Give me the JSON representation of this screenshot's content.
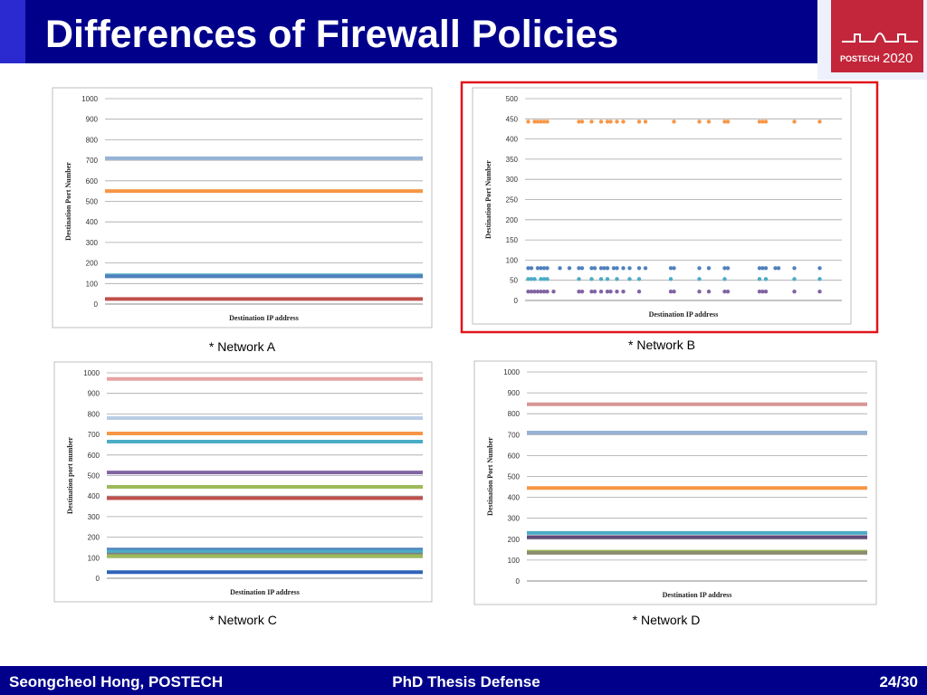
{
  "header": {
    "title": "Differences of Firewall Policies",
    "logo": "POSTECH",
    "logo_year": "2020"
  },
  "chart_data": [
    {
      "type": "line",
      "caption": "* Network A",
      "ylabel": "Destination Port Number",
      "xlabel": "Destination IP address",
      "xlim": [
        0,
        100
      ],
      "ylim": [
        0,
        1000
      ],
      "yticks": [
        0,
        100,
        200,
        300,
        400,
        500,
        600,
        700,
        800,
        900,
        1000
      ],
      "grid": true,
      "x": [
        0,
        100
      ],
      "series": [
        {
          "color": "#95b3d7",
          "values": [
            710,
            710
          ]
        },
        {
          "color": "#f79646",
          "values": [
            550,
            550
          ]
        },
        {
          "color": "#4bacc6",
          "values": [
            140,
            140
          ]
        },
        {
          "color": "#4f81bd",
          "values": [
            135,
            135
          ]
        },
        {
          "color": "#c0504d",
          "values": [
            25,
            25
          ]
        }
      ]
    },
    {
      "type": "scatter",
      "caption": "* Network B",
      "ylabel": "Destination Port Number",
      "xlabel": "Destination IP address",
      "xlim": [
        0,
        100
      ],
      "ylim": [
        0,
        500
      ],
      "yticks": [
        0,
        50,
        100,
        150,
        200,
        250,
        300,
        350,
        400,
        450,
        500
      ],
      "grid": true,
      "series": [
        {
          "color": "#f79646",
          "x": [
            1,
            3,
            4,
            5,
            6,
            7,
            17,
            18,
            21,
            24,
            26,
            27,
            29,
            31,
            36,
            38,
            47,
            55,
            58,
            63,
            64,
            74,
            75,
            76,
            85,
            93
          ],
          "values": [
            443,
            443,
            443,
            443,
            443,
            443,
            443,
            443,
            443,
            443,
            443,
            443,
            443,
            443,
            443,
            443,
            443,
            443,
            443,
            443,
            443,
            443,
            443,
            443,
            443,
            443
          ]
        },
        {
          "color": "#4f81bd",
          "x": [
            1,
            2,
            4,
            5,
            6,
            7,
            11,
            14,
            17,
            18,
            21,
            22,
            24,
            25,
            26,
            28,
            29,
            31,
            33,
            36,
            38,
            46,
            47,
            55,
            58,
            63,
            64,
            74,
            75,
            76,
            79,
            80,
            85,
            93
          ],
          "values": [
            80,
            80,
            80,
            80,
            80,
            80,
            80,
            80,
            80,
            80,
            80,
            80,
            80,
            80,
            80,
            80,
            80,
            80,
            80,
            80,
            80,
            80,
            80,
            80,
            80,
            80,
            80,
            80,
            80,
            80,
            80,
            80,
            80,
            80
          ]
        },
        {
          "color": "#4bacc6",
          "x": [
            1,
            2,
            3,
            5,
            6,
            7,
            17,
            21,
            24,
            26,
            29,
            33,
            36,
            46,
            55,
            63,
            74,
            76,
            85,
            93
          ],
          "values": [
            53,
            53,
            53,
            53,
            53,
            53,
            53,
            53,
            53,
            53,
            53,
            53,
            53,
            53,
            53,
            53,
            53,
            53,
            53,
            53
          ]
        },
        {
          "color": "#8064a2",
          "x": [
            1,
            2,
            3,
            4,
            5,
            6,
            7,
            9,
            17,
            18,
            21,
            22,
            24,
            26,
            27,
            29,
            31,
            36,
            46,
            47,
            55,
            58,
            63,
            64,
            74,
            75,
            76,
            85,
            93
          ],
          "values": [
            22,
            22,
            22,
            22,
            22,
            22,
            22,
            22,
            22,
            22,
            22,
            22,
            22,
            22,
            22,
            22,
            22,
            22,
            22,
            22,
            22,
            22,
            22,
            22,
            22,
            22,
            22,
            22,
            22
          ]
        }
      ]
    },
    {
      "type": "line",
      "caption": "* Network C",
      "ylabel": "Destination port number",
      "xlabel": "Destination IP address",
      "xlim": [
        0,
        100
      ],
      "ylim": [
        0,
        1000
      ],
      "yticks": [
        0,
        100,
        200,
        300,
        400,
        500,
        600,
        700,
        800,
        900,
        1000
      ],
      "grid": true,
      "x": [
        0,
        100
      ],
      "series": [
        {
          "color": "#e6a3a1",
          "values": [
            970,
            970
          ]
        },
        {
          "color": "#b9cde5",
          "values": [
            780,
            780
          ]
        },
        {
          "color": "#f79646",
          "values": [
            705,
            705
          ]
        },
        {
          "color": "#4bacc6",
          "values": [
            665,
            665
          ]
        },
        {
          "color": "#8064a2",
          "values": [
            515,
            515
          ]
        },
        {
          "color": "#9bbb59",
          "values": [
            445,
            445
          ]
        },
        {
          "color": "#c0504d",
          "values": [
            390,
            390
          ]
        },
        {
          "color": "#4f81bd",
          "values": [
            140,
            140
          ]
        },
        {
          "color": "#4bacc6",
          "values": [
            130,
            130
          ]
        },
        {
          "color": "#7f7f7f",
          "values": [
            115,
            115
          ]
        },
        {
          "color": "#9bbb59",
          "values": [
            108,
            108
          ]
        },
        {
          "color": "#2e63b8",
          "values": [
            30,
            30
          ]
        }
      ]
    },
    {
      "type": "line",
      "caption": "* Network D",
      "ylabel": "Destination Port Number",
      "xlabel": "Destination IP address",
      "xlim": [
        0,
        100
      ],
      "ylim": [
        0,
        1000
      ],
      "yticks": [
        0,
        100,
        200,
        300,
        400,
        500,
        600,
        700,
        800,
        900,
        1000
      ],
      "grid": true,
      "x": [
        0,
        100
      ],
      "series": [
        {
          "color": "#d99694",
          "values": [
            845,
            845
          ]
        },
        {
          "color": "#95b3d7",
          "values": [
            710,
            710
          ]
        },
        {
          "color": "#f79646",
          "values": [
            445,
            445
          ]
        },
        {
          "color": "#4bacc6",
          "values": [
            230,
            230
          ]
        },
        {
          "color": "#604a7b",
          "values": [
            210,
            210
          ]
        },
        {
          "color": "#9bbb59",
          "values": [
            140,
            140
          ]
        },
        {
          "color": "#8c8c6c",
          "values": [
            135,
            135
          ]
        }
      ]
    }
  ],
  "footer": {
    "author": "Seongcheol Hong, POSTECH",
    "event": "PhD Thesis Defense",
    "page": "24/30"
  }
}
